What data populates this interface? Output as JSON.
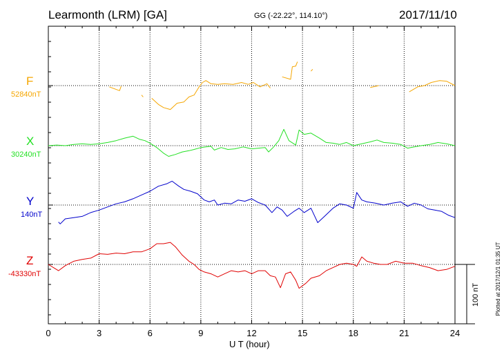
{
  "header": {
    "station": "Learmonth (LRM)  [GA]",
    "coords": "GG (-22.22°, 114.10°)",
    "date": "2017/11/10"
  },
  "footer_note": "Plotted at 2017/12/1 01:35 UT",
  "chart_data": {
    "type": "line",
    "xlabel": "U T (hour)",
    "xlim": [
      0,
      24
    ],
    "xticks": [
      0,
      3,
      6,
      9,
      12,
      15,
      18,
      21,
      24
    ],
    "grid": true,
    "scale_bar": {
      "label": "100 nT",
      "value_nT": 100
    },
    "series": [
      {
        "name": "F",
        "baseline_label": "52840nT",
        "color": "#f5a600",
        "segments": [
          [
            [
              3.6,
              -2
            ],
            [
              4.2,
              -8
            ],
            [
              4.3,
              -1
            ]
          ],
          [
            [
              5.5,
              -15
            ],
            [
              5.6,
              -18
            ]
          ],
          [
            [
              6.1,
              -20
            ],
            [
              6.5,
              -30
            ],
            [
              6.8,
              -35
            ],
            [
              7.2,
              -38
            ],
            [
              7.6,
              -28
            ],
            [
              8.0,
              -26
            ],
            [
              8.3,
              -18
            ],
            [
              8.6,
              -15
            ],
            [
              8.9,
              -2
            ],
            [
              9.1,
              5
            ],
            [
              9.3,
              8
            ],
            [
              9.6,
              3
            ],
            [
              10.0,
              2
            ],
            [
              10.4,
              3
            ],
            [
              10.9,
              2
            ],
            [
              11.4,
              5
            ],
            [
              11.8,
              2
            ],
            [
              12.1,
              5
            ],
            [
              12.5,
              -2
            ],
            [
              12.9,
              3
            ],
            [
              13.1,
              -4
            ]
          ]
        ],
        "segments2": [
          [
            [
              13.8,
              14
            ],
            [
              14.3,
              10
            ],
            [
              14.4,
              30
            ],
            [
              14.6,
              31
            ],
            [
              14.7,
              38
            ]
          ],
          [
            [
              15.5,
              23
            ],
            [
              15.6,
              26
            ]
          ],
          [
            [
              19.0,
              -3
            ],
            [
              19.5,
              0
            ]
          ],
          [
            [
              21.3,
              -10
            ],
            [
              21.8,
              -2
            ],
            [
              22.2,
              0
            ],
            [
              22.6,
              5
            ],
            [
              23.1,
              8
            ],
            [
              23.5,
              7
            ],
            [
              24.0,
              0
            ]
          ]
        ]
      },
      {
        "name": "X",
        "baseline_label": "30240nT",
        "color": "#22e022",
        "points": [
          [
            0,
            0
          ],
          [
            0.5,
            1
          ],
          [
            1.0,
            0
          ],
          [
            1.5,
            2
          ],
          [
            2.0,
            3
          ],
          [
            2.5,
            2
          ],
          [
            3.0,
            3
          ],
          [
            3.5,
            5
          ],
          [
            4.0,
            8
          ],
          [
            4.5,
            12
          ],
          [
            5.0,
            15
          ],
          [
            5.4,
            10
          ],
          [
            5.7,
            8
          ],
          [
            6.0,
            4
          ],
          [
            6.4,
            -3
          ],
          [
            6.8,
            -12
          ],
          [
            7.1,
            -17
          ],
          [
            7.5,
            -14
          ],
          [
            7.9,
            -10
          ],
          [
            8.3,
            -8
          ],
          [
            8.6,
            -6
          ],
          [
            9.0,
            -3
          ],
          [
            9.3,
            -2
          ],
          [
            9.6,
            -1
          ],
          [
            9.8,
            -7
          ],
          [
            10.2,
            -3
          ],
          [
            10.6,
            -6
          ],
          [
            11.0,
            -5
          ],
          [
            11.5,
            -2
          ],
          [
            12.0,
            -5
          ],
          [
            12.4,
            -4
          ],
          [
            12.8,
            -3
          ],
          [
            13.0,
            -10
          ],
          [
            13.3,
            -2
          ],
          [
            13.6,
            8
          ],
          [
            13.9,
            26
          ],
          [
            14.2,
            8
          ],
          [
            14.6,
            1
          ],
          [
            14.8,
            25
          ],
          [
            15.1,
            18
          ],
          [
            15.5,
            20
          ],
          [
            16.0,
            12
          ],
          [
            16.4,
            5
          ],
          [
            16.8,
            4
          ],
          [
            17.2,
            2
          ],
          [
            17.6,
            5
          ],
          [
            18.0,
            0
          ],
          [
            18.5,
            3
          ],
          [
            19.0,
            6
          ],
          [
            19.4,
            9
          ],
          [
            19.8,
            5
          ],
          [
            20.3,
            4
          ],
          [
            20.8,
            2
          ],
          [
            21.2,
            -4
          ],
          [
            21.6,
            -2
          ],
          [
            22.0,
            0
          ],
          [
            22.5,
            2
          ],
          [
            23.0,
            5
          ],
          [
            23.5,
            3
          ],
          [
            24.0,
            0
          ]
        ]
      },
      {
        "name": "Y",
        "baseline_label": "140nT",
        "color": "#0000cc",
        "points": [
          [
            0.6,
            -27
          ],
          [
            0.7,
            -30
          ],
          [
            1.0,
            -22
          ],
          [
            1.5,
            -20
          ],
          [
            2.0,
            -18
          ],
          [
            2.5,
            -12
          ],
          [
            3.0,
            -8
          ],
          [
            3.5,
            -3
          ],
          [
            4.0,
            2
          ],
          [
            4.5,
            5
          ],
          [
            5.0,
            10
          ],
          [
            5.5,
            16
          ],
          [
            6.0,
            22
          ],
          [
            6.5,
            30
          ],
          [
            7.0,
            34
          ],
          [
            7.3,
            38
          ],
          [
            7.7,
            30
          ],
          [
            8.0,
            25
          ],
          [
            8.4,
            22
          ],
          [
            8.8,
            18
          ],
          [
            9.2,
            8
          ],
          [
            9.5,
            5
          ],
          [
            9.8,
            8
          ],
          [
            10.0,
            0
          ],
          [
            10.4,
            3
          ],
          [
            10.8,
            2
          ],
          [
            11.2,
            8
          ],
          [
            11.6,
            6
          ],
          [
            12.0,
            10
          ],
          [
            12.4,
            4
          ],
          [
            12.8,
            0
          ],
          [
            13.2,
            -12
          ],
          [
            13.5,
            -3
          ],
          [
            13.8,
            -8
          ],
          [
            14.1,
            -18
          ],
          [
            14.5,
            -10
          ],
          [
            14.8,
            -5
          ],
          [
            15.1,
            -12
          ],
          [
            15.5,
            -5
          ],
          [
            15.9,
            -28
          ],
          [
            16.3,
            -18
          ],
          [
            16.8,
            -5
          ],
          [
            17.2,
            2
          ],
          [
            17.6,
            0
          ],
          [
            18.0,
            -5
          ],
          [
            18.2,
            20
          ],
          [
            18.5,
            8
          ],
          [
            18.8,
            5
          ],
          [
            19.3,
            3
          ],
          [
            19.8,
            0
          ],
          [
            20.3,
            3
          ],
          [
            20.8,
            5
          ],
          [
            21.2,
            -2
          ],
          [
            21.6,
            3
          ],
          [
            22.0,
            0
          ],
          [
            22.4,
            -6
          ],
          [
            22.8,
            -8
          ],
          [
            23.2,
            -10
          ],
          [
            23.6,
            -16
          ],
          [
            24.0,
            -20
          ]
        ]
      },
      {
        "name": "Z",
        "baseline_label": "-43330nT",
        "color": "#e00000",
        "points": [
          [
            0,
            0
          ],
          [
            0.3,
            -5
          ],
          [
            0.6,
            -10
          ],
          [
            1.0,
            -2
          ],
          [
            1.5,
            5
          ],
          [
            2.0,
            8
          ],
          [
            2.5,
            10
          ],
          [
            3.0,
            17
          ],
          [
            3.5,
            16
          ],
          [
            4.0,
            18
          ],
          [
            4.5,
            17
          ],
          [
            5.0,
            20
          ],
          [
            5.5,
            20
          ],
          [
            6.0,
            25
          ],
          [
            6.4,
            33
          ],
          [
            6.8,
            33
          ],
          [
            7.2,
            35
          ],
          [
            7.5,
            28
          ],
          [
            7.9,
            15
          ],
          [
            8.3,
            5
          ],
          [
            8.6,
            0
          ],
          [
            8.9,
            -8
          ],
          [
            9.2,
            -12
          ],
          [
            9.6,
            -15
          ],
          [
            10.0,
            -20
          ],
          [
            10.4,
            -15
          ],
          [
            10.8,
            -10
          ],
          [
            11.2,
            -12
          ],
          [
            11.6,
            -10
          ],
          [
            12.0,
            -15
          ],
          [
            12.4,
            -10
          ],
          [
            12.8,
            -10
          ],
          [
            13.1,
            -18
          ],
          [
            13.4,
            -20
          ],
          [
            13.7,
            -37
          ],
          [
            14.0,
            -15
          ],
          [
            14.3,
            -12
          ],
          [
            14.6,
            -25
          ],
          [
            14.8,
            -38
          ],
          [
            15.2,
            -30
          ],
          [
            15.5,
            -22
          ],
          [
            16.0,
            -18
          ],
          [
            16.4,
            -10
          ],
          [
            16.8,
            -5
          ],
          [
            17.2,
            0
          ],
          [
            17.6,
            2
          ],
          [
            18.0,
            0
          ],
          [
            18.2,
            -3
          ],
          [
            18.5,
            12
          ],
          [
            18.8,
            5
          ],
          [
            19.2,
            2
          ],
          [
            19.6,
            0
          ],
          [
            20.0,
            0
          ],
          [
            20.5,
            5
          ],
          [
            21.0,
            2
          ],
          [
            21.5,
            2
          ],
          [
            22.0,
            -2
          ],
          [
            22.5,
            -5
          ],
          [
            23.0,
            -10
          ],
          [
            23.5,
            -8
          ],
          [
            24.0,
            -3
          ]
        ]
      }
    ]
  }
}
